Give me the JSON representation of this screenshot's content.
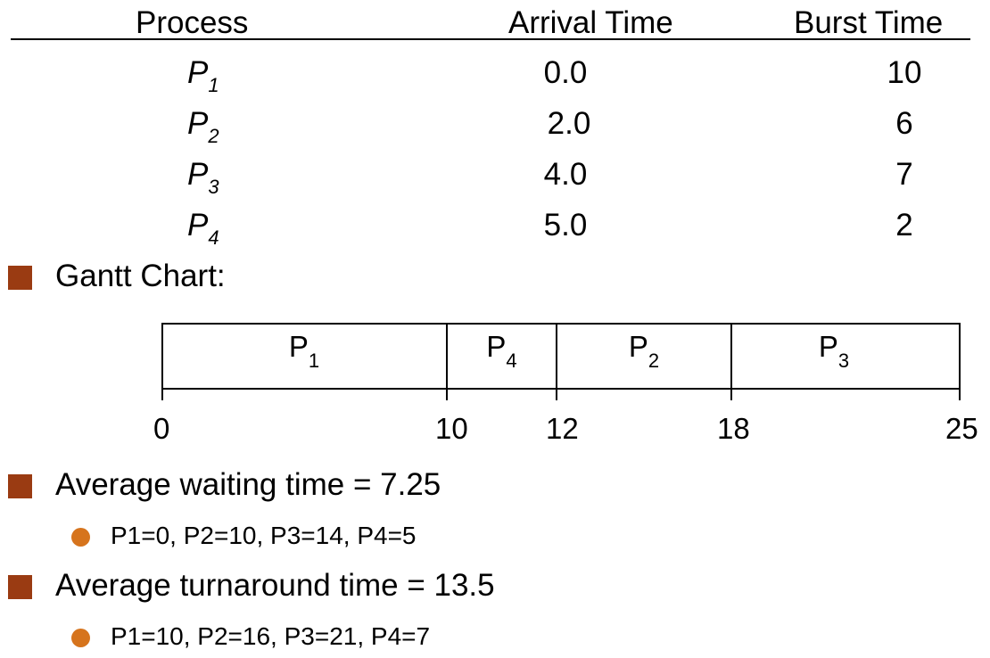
{
  "table": {
    "headers": {
      "process": "Process",
      "arrival": "Arrival Time",
      "burst": "Burst Time"
    },
    "rows": [
      {
        "name": "P",
        "sub": "1",
        "arrival": "0.0",
        "burst": "10"
      },
      {
        "name": "P",
        "sub": "2",
        "arrival": "2.0",
        "burst": "6"
      },
      {
        "name": "P",
        "sub": "3",
        "arrival": "4.0",
        "burst": "7"
      },
      {
        "name": "P",
        "sub": "4",
        "arrival": "5.0",
        "burst": "2"
      }
    ]
  },
  "gantt": {
    "title": "Gantt Chart:",
    "segments": [
      {
        "name": "P",
        "sub": "1",
        "start": 0,
        "end": 10
      },
      {
        "name": "P",
        "sub": "4",
        "start": 10,
        "end": 12
      },
      {
        "name": "P",
        "sub": "2",
        "start": 12,
        "end": 18
      },
      {
        "name": "P",
        "sub": "3",
        "start": 18,
        "end": 25
      }
    ],
    "times": [
      "0",
      "10",
      "12",
      "18",
      "25"
    ]
  },
  "stats": {
    "waiting": {
      "label": "Average waiting time = 7.25",
      "detail": "P1=0, P2=10, P3=14, P4=5"
    },
    "turnaround": {
      "label": "Average turnaround time = 13.5",
      "detail": "P1=10, P2=16, P3=21, P4=7"
    }
  },
  "colors": {
    "square_bullet": "#9a3b12",
    "dot_bullet": "#d6741d"
  }
}
